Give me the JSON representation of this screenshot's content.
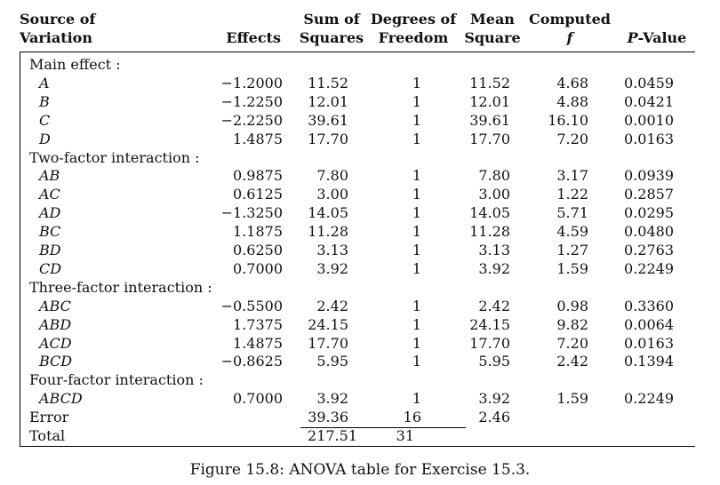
{
  "headers": {
    "source_l1": "Source of",
    "source_l2": "Variation",
    "effects": "Effects",
    "ss_l1": "Sum of",
    "ss_l2": "Squares",
    "df_l1": "Degrees of",
    "df_l2": "Freedom",
    "ms_l1": "Mean",
    "ms_l2": "Square",
    "f_l1": "Computed",
    "f_l2": "f",
    "p_prefix": "P",
    "p_suffix": "-Value"
  },
  "rows": [
    {
      "type": "group",
      "label": "Main effect :"
    },
    {
      "type": "data",
      "source": "A",
      "effect": "−1.2000",
      "ss": "11.52",
      "df": "1",
      "ms": "11.52",
      "f": "4.68",
      "p": "0.0459"
    },
    {
      "type": "data",
      "source": "B",
      "effect": "−1.2250",
      "ss": "12.01",
      "df": "1",
      "ms": "12.01",
      "f": "4.88",
      "p": "0.0421"
    },
    {
      "type": "data",
      "source": "C",
      "effect": "−2.2250",
      "ss": "39.61",
      "df": "1",
      "ms": "39.61",
      "f": "16.10",
      "p": "0.0010"
    },
    {
      "type": "data",
      "source": "D",
      "effect": "1.4875",
      "ss": "17.70",
      "df": "1",
      "ms": "17.70",
      "f": "7.20",
      "p": "0.0163"
    },
    {
      "type": "group",
      "label": "Two-factor interaction :"
    },
    {
      "type": "data",
      "source": "AB",
      "effect": "0.9875",
      "ss": "7.80",
      "df": "1",
      "ms": "7.80",
      "f": "3.17",
      "p": "0.0939"
    },
    {
      "type": "data",
      "source": "AC",
      "effect": "0.6125",
      "ss": "3.00",
      "df": "1",
      "ms": "3.00",
      "f": "1.22",
      "p": "0.2857"
    },
    {
      "type": "data",
      "source": "AD",
      "effect": "−1.3250",
      "ss": "14.05",
      "df": "1",
      "ms": "14.05",
      "f": "5.71",
      "p": "0.0295"
    },
    {
      "type": "data",
      "source": "BC",
      "effect": "1.1875",
      "ss": "11.28",
      "df": "1",
      "ms": "11.28",
      "f": "4.59",
      "p": "0.0480"
    },
    {
      "type": "data",
      "source": "BD",
      "effect": "0.6250",
      "ss": "3.13",
      "df": "1",
      "ms": "3.13",
      "f": "1.27",
      "p": "0.2763"
    },
    {
      "type": "data",
      "source": "CD",
      "effect": "0.7000",
      "ss": "3.92",
      "df": "1",
      "ms": "3.92",
      "f": "1.59",
      "p": "0.2249"
    },
    {
      "type": "group",
      "label": "Three-factor interaction :"
    },
    {
      "type": "data",
      "source": "ABC",
      "effect": "−0.5500",
      "ss": "2.42",
      "df": "1",
      "ms": "2.42",
      "f": "0.98",
      "p": "0.3360"
    },
    {
      "type": "data",
      "source": "ABD",
      "effect": "1.7375",
      "ss": "24.15",
      "df": "1",
      "ms": "24.15",
      "f": "9.82",
      "p": "0.0064"
    },
    {
      "type": "data",
      "source": "ACD",
      "effect": "1.4875",
      "ss": "17.70",
      "df": "1",
      "ms": "17.70",
      "f": "7.20",
      "p": "0.0163"
    },
    {
      "type": "data",
      "source": "BCD",
      "effect": "−0.8625",
      "ss": "5.95",
      "df": "1",
      "ms": "5.95",
      "f": "2.42",
      "p": "0.1394"
    },
    {
      "type": "group",
      "label": "Four-factor interaction :"
    },
    {
      "type": "data",
      "source": "ABCD",
      "effect": "0.7000",
      "ss": "3.92",
      "df": "1",
      "ms": "3.92",
      "f": "1.59",
      "p": "0.2249"
    },
    {
      "type": "error",
      "label": "Error",
      "ss": "39.36",
      "df": "16",
      "ms": "2.46"
    },
    {
      "type": "total",
      "label": "Total",
      "ss": "217.51",
      "df": "31"
    }
  ],
  "caption": "Figure 15.8: ANOVA table for Exercise 15.3."
}
